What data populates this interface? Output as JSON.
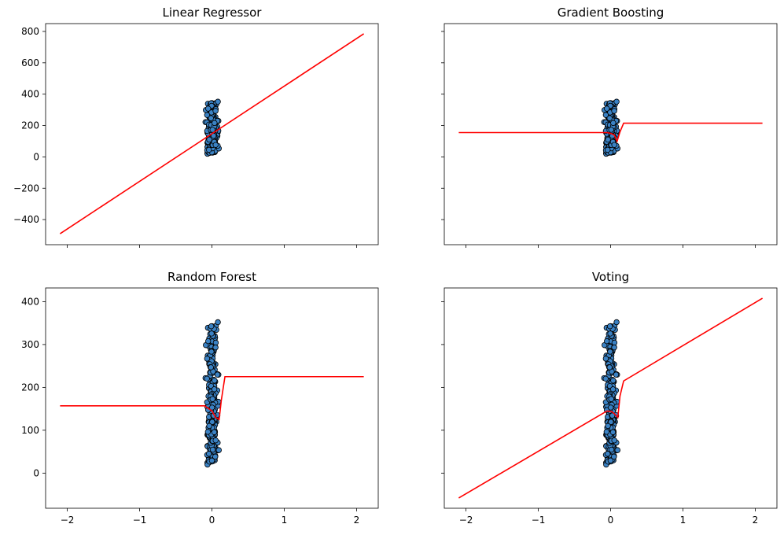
{
  "chart_data": [
    {
      "type": "scatter",
      "title": "Linear Regressor",
      "xlim": [
        -2.3,
        2.3
      ],
      "ylim": [
        -560,
        850
      ],
      "xticks": [
        -2,
        -1,
        0,
        1,
        2
      ],
      "xtick_labels": [],
      "yticks": [
        -400,
        -200,
        0,
        200,
        400,
        600,
        800
      ],
      "ytick_labels": [
        "−400",
        "−200",
        "0",
        "200",
        "400",
        "600",
        "800"
      ],
      "line": {
        "name": "prediction",
        "color": "#ff0000",
        "x": [
          -2.1,
          2.1
        ],
        "y": [
          -490,
          785
        ]
      },
      "points": {
        "name": "samples",
        "color": "#3b82c4"
      }
    },
    {
      "type": "scatter",
      "title": "Gradient Boosting",
      "xlim": [
        -2.3,
        2.3
      ],
      "ylim": [
        -560,
        850
      ],
      "xticks": [
        -2,
        -1,
        0,
        1,
        2
      ],
      "xtick_labels": [],
      "yticks": [
        -400,
        -200,
        0,
        200,
        400,
        600,
        800
      ],
      "ytick_labels": [],
      "line": {
        "name": "prediction",
        "color": "#ff0000",
        "x": [
          -2.1,
          -0.05,
          0.0,
          0.05,
          0.09,
          0.13,
          0.18,
          2.1
        ],
        "y": [
          155,
          155,
          150,
          140,
          100,
          160,
          215,
          215
        ]
      },
      "points": {
        "name": "samples",
        "color": "#3b82c4"
      }
    },
    {
      "type": "scatter",
      "title": "Random Forest",
      "xlim": [
        -2.3,
        2.3
      ],
      "ylim": [
        -82,
        432
      ],
      "xticks": [
        -2,
        -1,
        0,
        1,
        2
      ],
      "xtick_labels": [
        "−2",
        "−1",
        "0",
        "1",
        "2"
      ],
      "yticks": [
        0,
        100,
        200,
        300,
        400
      ],
      "ytick_labels": [
        "0",
        "100",
        "200",
        "300",
        "400"
      ],
      "line": {
        "name": "prediction",
        "color": "#ff0000",
        "x": [
          -2.1,
          -0.1,
          0.0,
          0.05,
          0.1,
          0.13,
          0.18,
          2.1
        ],
        "y": [
          157,
          157,
          145,
          130,
          125,
          170,
          225,
          225
        ]
      },
      "points": {
        "name": "samples",
        "color": "#3b82c4"
      }
    },
    {
      "type": "scatter",
      "title": "Voting",
      "xlim": [
        -2.3,
        2.3
      ],
      "ylim": [
        -82,
        432
      ],
      "xticks": [
        -2,
        -1,
        0,
        1,
        2
      ],
      "xtick_labels": [
        "−2",
        "−1",
        "0",
        "1",
        "2"
      ],
      "yticks": [
        0,
        100,
        200,
        300,
        400
      ],
      "ytick_labels": [],
      "line": {
        "name": "prediction",
        "color": "#ff0000",
        "x": [
          -2.1,
          -0.05,
          0.02,
          0.06,
          0.1,
          0.13,
          0.18,
          2.1
        ],
        "y": [
          -58,
          145,
          143,
          137,
          130,
          180,
          215,
          408
        ]
      },
      "points": {
        "name": "samples",
        "color": "#3b82c4"
      }
    }
  ]
}
